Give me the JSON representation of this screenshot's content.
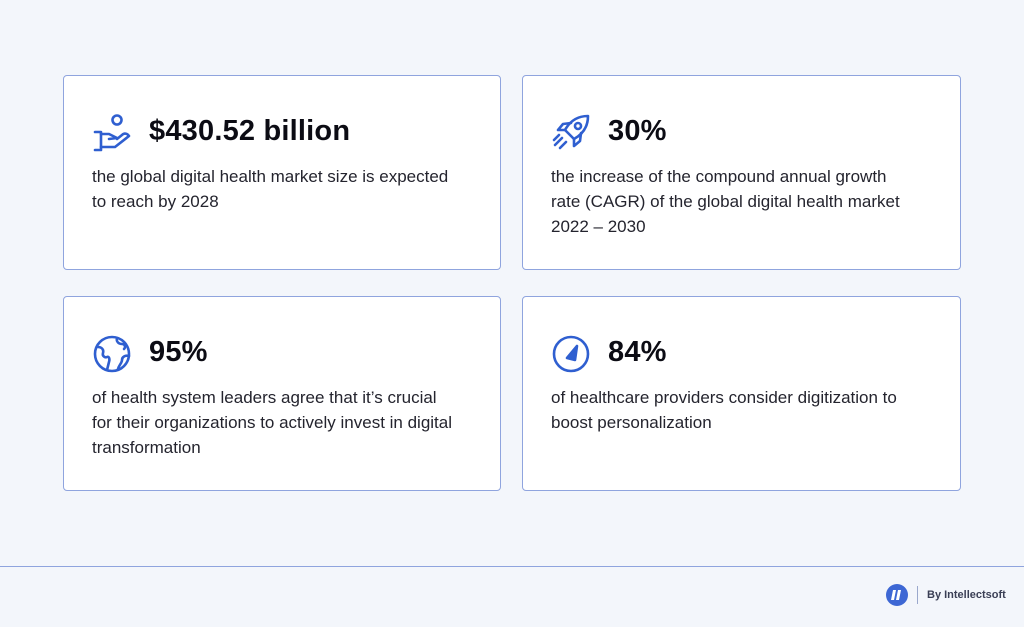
{
  "stats": [
    {
      "icon": "hand-holding-coin-icon",
      "value": "$430.52 billion",
      "description": "the global digital health market size is expected to reach by 2028"
    },
    {
      "icon": "rocket-icon",
      "value": "30%",
      "description": "the increase of the compound  annual growth rate (CAGR) of the global digital health market 2022 – 2030"
    },
    {
      "icon": "globe-icon",
      "value": "95%",
      "description": "of health system leaders agree that it’s crucial for their organizations to actively invest in digital transformation"
    },
    {
      "icon": "gauge-icon",
      "value": "84%",
      "description": "of healthcare providers consider digitization to boost personalization"
    }
  ],
  "footer": {
    "brand_text": "By Intellectsoft",
    "logo_icon": "intellectsoft-logo-icon"
  },
  "colors": {
    "background": "#f3f6fb",
    "card_border": "#8fa4de",
    "icon_blue": "#2f5fd0",
    "text_dark": "#0c0c14"
  }
}
